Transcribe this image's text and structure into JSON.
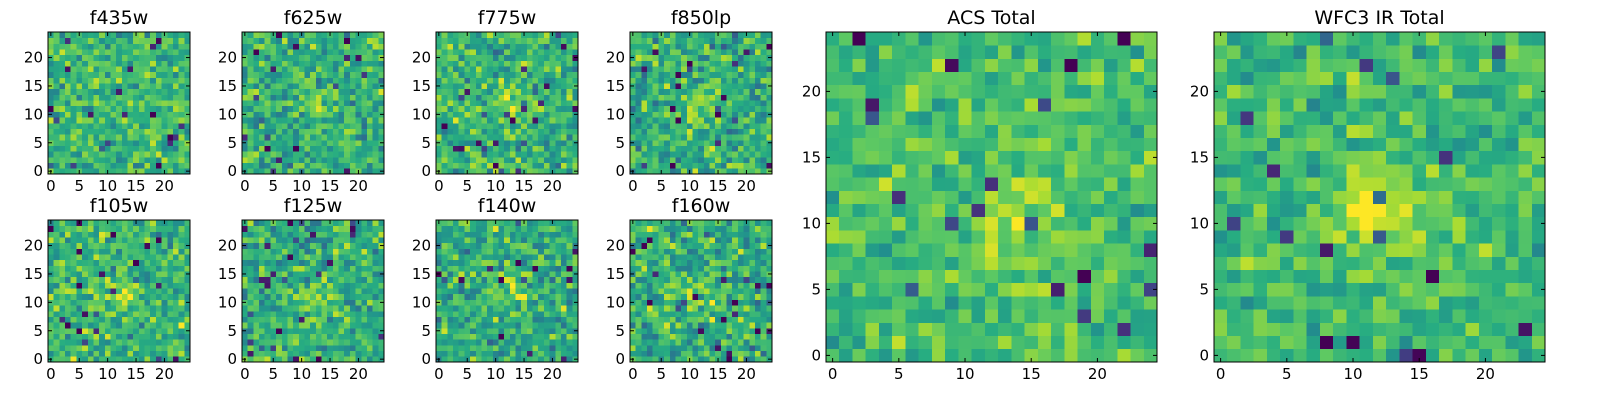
{
  "chart_data": [
    {
      "type": "heatmap",
      "title": "f435w",
      "xticks": [
        "0",
        "5",
        "10",
        "15",
        "20"
      ],
      "yticks": [
        "0",
        "5",
        "10",
        "15",
        "20"
      ],
      "xlim": [
        -0.5,
        24.5
      ],
      "ylim": [
        -0.5,
        24.5
      ],
      "colormap": "viridis",
      "grid_size": [
        25,
        25
      ],
      "seed": 435,
      "mean": 0.68,
      "spread": 0.14,
      "blob": null
    },
    {
      "type": "heatmap",
      "title": "f625w",
      "xticks": [
        "0",
        "5",
        "10",
        "15",
        "20"
      ],
      "yticks": [
        "0",
        "5",
        "10",
        "15",
        "20"
      ],
      "xlim": [
        -0.5,
        24.5
      ],
      "ylim": [
        -0.5,
        24.5
      ],
      "colormap": "viridis",
      "grid_size": [
        25,
        25
      ],
      "seed": 625,
      "mean": 0.64,
      "spread": 0.15,
      "blob": [
        13,
        12,
        0.18
      ]
    },
    {
      "type": "heatmap",
      "title": "f775w",
      "xticks": [
        "0",
        "5",
        "10",
        "15",
        "20"
      ],
      "yticks": [
        "0",
        "5",
        "10",
        "15",
        "20"
      ],
      "xlim": [
        -0.5,
        24.5
      ],
      "ylim": [
        -0.5,
        24.5
      ],
      "colormap": "viridis",
      "grid_size": [
        25,
        25
      ],
      "seed": 775,
      "mean": 0.65,
      "spread": 0.15,
      "blob": [
        12,
        12,
        0.2
      ]
    },
    {
      "type": "heatmap",
      "title": "f850lp",
      "xticks": [
        "0",
        "5",
        "10",
        "15",
        "20"
      ],
      "yticks": [
        "0",
        "5",
        "10",
        "15",
        "20"
      ],
      "xlim": [
        -0.5,
        24.5
      ],
      "ylim": [
        -0.5,
        24.5
      ],
      "colormap": "viridis",
      "grid_size": [
        25,
        25
      ],
      "seed": 850,
      "mean": 0.64,
      "spread": 0.15,
      "blob": [
        13,
        12,
        0.2
      ]
    },
    {
      "type": "heatmap",
      "title": "f105w",
      "xticks": [
        "0",
        "5",
        "10",
        "15",
        "20"
      ],
      "yticks": [
        "0",
        "5",
        "10",
        "15",
        "20"
      ],
      "xlim": [
        -0.5,
        24.5
      ],
      "ylim": [
        -0.5,
        24.5
      ],
      "colormap": "viridis",
      "grid_size": [
        25,
        25
      ],
      "seed": 105,
      "mean": 0.66,
      "spread": 0.15,
      "blob": [
        12,
        11,
        0.15
      ]
    },
    {
      "type": "heatmap",
      "title": "f125w",
      "xticks": [
        "0",
        "5",
        "10",
        "15",
        "20"
      ],
      "yticks": [
        "0",
        "5",
        "10",
        "15",
        "20"
      ],
      "xlim": [
        -0.5,
        24.5
      ],
      "ylim": [
        -0.5,
        24.5
      ],
      "colormap": "viridis",
      "grid_size": [
        25,
        25
      ],
      "seed": 125,
      "mean": 0.64,
      "spread": 0.15,
      "blob": [
        12,
        11,
        0.18
      ]
    },
    {
      "type": "heatmap",
      "title": "f140w",
      "xticks": [
        "0",
        "5",
        "10",
        "15",
        "20"
      ],
      "yticks": [
        "0",
        "5",
        "10",
        "15",
        "20"
      ],
      "xlim": [
        -0.5,
        24.5
      ],
      "ylim": [
        -0.5,
        24.5
      ],
      "colormap": "viridis",
      "grid_size": [
        25,
        25
      ],
      "seed": 140,
      "mean": 0.63,
      "spread": 0.15,
      "blob": [
        12,
        12,
        0.18
      ]
    },
    {
      "type": "heatmap",
      "title": "f160w",
      "xticks": [
        "0",
        "5",
        "10",
        "15",
        "20"
      ],
      "yticks": [
        "0",
        "5",
        "10",
        "15",
        "20"
      ],
      "xlim": [
        -0.5,
        24.5
      ],
      "ylim": [
        -0.5,
        24.5
      ],
      "colormap": "viridis",
      "grid_size": [
        25,
        25
      ],
      "seed": 160,
      "mean": 0.63,
      "spread": 0.16,
      "blob": [
        13,
        11,
        0.2
      ]
    },
    {
      "type": "heatmap",
      "title": "ACS Total",
      "xticks": [
        "0",
        "5",
        "10",
        "15",
        "20"
      ],
      "yticks": [
        "0",
        "5",
        "10",
        "15",
        "20"
      ],
      "xlim": [
        -0.5,
        24.5
      ],
      "ylim": [
        -0.5,
        24.5
      ],
      "colormap": "viridis",
      "grid_size": [
        25,
        25
      ],
      "seed": 900,
      "mean": 0.7,
      "spread": 0.11,
      "blob": [
        14,
        11,
        0.22
      ]
    },
    {
      "type": "heatmap",
      "title": "WFC3 IR Total",
      "xticks": [
        "0",
        "5",
        "10",
        "15",
        "20"
      ],
      "yticks": [
        "0",
        "5",
        "10",
        "15",
        "20"
      ],
      "xlim": [
        -0.5,
        24.5
      ],
      "ylim": [
        -0.5,
        24.5
      ],
      "colormap": "viridis",
      "grid_size": [
        25,
        25
      ],
      "seed": 901,
      "mean": 0.68,
      "spread": 0.11,
      "blob": [
        12,
        11,
        0.26
      ]
    }
  ]
}
